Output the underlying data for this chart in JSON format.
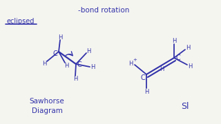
{
  "bg_color": "#f5f5f0",
  "ink_color": "#3333aa",
  "title": "-bond rotation",
  "label_eclipsed": "eclipsed",
  "label_sawhorse": "Sawhorse\nDiagram",
  "label_sl": "Sl",
  "figsize": [
    3.2,
    1.8
  ],
  "dpi": 100
}
